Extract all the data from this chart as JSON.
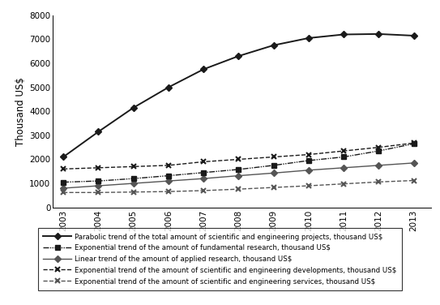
{
  "years": [
    2003,
    2004,
    2005,
    2006,
    2007,
    2008,
    2009,
    2010,
    2011,
    2012,
    2013
  ],
  "series": {
    "parabolic": [
      2100,
      3150,
      4150,
      5000,
      5750,
      6300,
      6750,
      7050,
      7200,
      7220,
      7150
    ],
    "fundamental": [
      1050,
      1100,
      1200,
      1320,
      1450,
      1580,
      1750,
      1950,
      2100,
      2350,
      2650
    ],
    "applied": [
      800,
      900,
      1000,
      1100,
      1200,
      1320,
      1430,
      1550,
      1650,
      1750,
      1850
    ],
    "developments": [
      1600,
      1650,
      1700,
      1750,
      1900,
      2000,
      2100,
      2200,
      2350,
      2500,
      2680
    ],
    "services": [
      620,
      620,
      640,
      660,
      700,
      760,
      830,
      900,
      980,
      1060,
      1120
    ]
  },
  "legend_labels": [
    "Parabolic trend of the total amount of scientific and engineering projects, thousand US$",
    "Exponential trend of the amount of fundamental research, thousand US$",
    "Linear trend of the amount of applied research, thousand US$",
    "Exponential trend of the amount of scientific and engineering developments, thousand US$",
    "Exponential trend of the amount of scientific and engineering services, thousand US$"
  ],
  "ylabel": "Thousand US$",
  "ylim": [
    0,
    8000
  ],
  "yticks": [
    0,
    1000,
    2000,
    3000,
    4000,
    5000,
    6000,
    7000,
    8000
  ],
  "background_color": "#ffffff",
  "dark_color": "#1a1a1a",
  "mid_color": "#555555",
  "figsize": [
    5.43,
    3.76
  ],
  "dpi": 100
}
